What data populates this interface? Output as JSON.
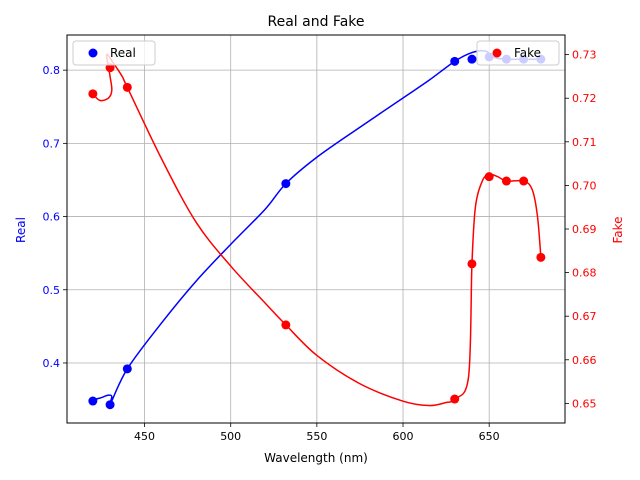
{
  "chart_data": {
    "type": "line",
    "title": "Real and Fake",
    "xlabel": "Wavelength (nm)",
    "x_axis": {
      "lim": [
        405,
        694
      ],
      "ticks": [
        450,
        500,
        550,
        600,
        650
      ]
    },
    "y_left": {
      "label": "Real",
      "color": "#0000ff",
      "lim": [
        0.318,
        0.848
      ],
      "ticks": [
        0.4,
        0.5,
        0.6,
        0.7,
        0.8
      ],
      "tick_labels": [
        "0.4",
        "0.5",
        "0.6",
        "0.7",
        "0.8"
      ]
    },
    "y_right": {
      "label": "Fake",
      "color": "#ff0000",
      "lim": [
        0.6455,
        0.7345
      ],
      "ticks": [
        0.65,
        0.66,
        0.67,
        0.68,
        0.69,
        0.7,
        0.71,
        0.72,
        0.73
      ],
      "tick_labels": [
        "0.65",
        "0.66",
        "0.67",
        "0.68",
        "0.69",
        "0.70",
        "0.71",
        "0.72",
        "0.73"
      ]
    },
    "grid": true,
    "series": [
      {
        "name": "Real",
        "axis": "left",
        "color": "#0000ff",
        "marker": "circle",
        "points": [
          {
            "x": 420,
            "y": 0.348
          },
          {
            "x": 430,
            "y": 0.343
          },
          {
            "x": 440,
            "y": 0.392
          },
          {
            "x": 532,
            "y": 0.645
          },
          {
            "x": 630,
            "y": 0.812
          },
          {
            "x": 640,
            "y": 0.815
          },
          {
            "x": 650,
            "y": 0.818
          },
          {
            "x": 660,
            "y": 0.815
          },
          {
            "x": 670,
            "y": 0.815
          },
          {
            "x": 680,
            "y": 0.815
          }
        ],
        "curve": [
          [
            420,
            0.35
          ],
          [
            424,
            0.352
          ],
          [
            429,
            0.356
          ],
          [
            431,
            0.354
          ],
          [
            430,
            0.343
          ],
          [
            440,
            0.392
          ],
          [
            460,
            0.455
          ],
          [
            480,
            0.512
          ],
          [
            500,
            0.562
          ],
          [
            520,
            0.61
          ],
          [
            532,
            0.645
          ],
          [
            550,
            0.681
          ],
          [
            575,
            0.722
          ],
          [
            600,
            0.762
          ],
          [
            615,
            0.786
          ],
          [
            630,
            0.812
          ],
          [
            640,
            0.824
          ],
          [
            648,
            0.826
          ],
          [
            652,
            0.818
          ],
          [
            660,
            0.815
          ],
          [
            680,
            0.815
          ]
        ]
      },
      {
        "name": "Fake",
        "axis": "right",
        "color": "#ff0000",
        "marker": "circle",
        "points": [
          {
            "x": 420,
            "y": 0.721
          },
          {
            "x": 430,
            "y": 0.727
          },
          {
            "x": 440,
            "y": 0.7225
          },
          {
            "x": 532,
            "y": 0.668
          },
          {
            "x": 630,
            "y": 0.651
          },
          {
            "x": 640,
            "y": 0.682
          },
          {
            "x": 650,
            "y": 0.702
          },
          {
            "x": 660,
            "y": 0.701
          },
          {
            "x": 670,
            "y": 0.701
          },
          {
            "x": 680,
            "y": 0.6835
          }
        ],
        "curve": [
          [
            420,
            0.721
          ],
          [
            424,
            0.7195
          ],
          [
            429,
            0.72
          ],
          [
            431,
            0.7218
          ],
          [
            430,
            0.725
          ],
          [
            428,
            0.73
          ],
          [
            432,
            0.728
          ],
          [
            437,
            0.725
          ],
          [
            440,
            0.7225
          ],
          [
            460,
            0.706
          ],
          [
            480,
            0.6915
          ],
          [
            500,
            0.6815
          ],
          [
            520,
            0.673
          ],
          [
            532,
            0.668
          ],
          [
            550,
            0.661
          ],
          [
            575,
            0.6545
          ],
          [
            600,
            0.6505
          ],
          [
            615,
            0.6495
          ],
          [
            625,
            0.6502
          ],
          [
            630,
            0.651
          ],
          [
            638,
            0.656
          ],
          [
            640,
            0.682
          ],
          [
            642,
            0.695
          ],
          [
            646,
            0.701
          ],
          [
            650,
            0.7025
          ],
          [
            655,
            0.702
          ],
          [
            660,
            0.701
          ],
          [
            670,
            0.701
          ],
          [
            675,
            0.699
          ],
          [
            678,
            0.693
          ],
          [
            680,
            0.6835
          ]
        ]
      }
    ],
    "legends": [
      {
        "series": "Real",
        "label": "Real",
        "placement": "upper-left",
        "color": "#0000ff"
      },
      {
        "series": "Fake",
        "label": "Fake",
        "placement": "upper-right",
        "color": "#ff0000"
      }
    ]
  }
}
